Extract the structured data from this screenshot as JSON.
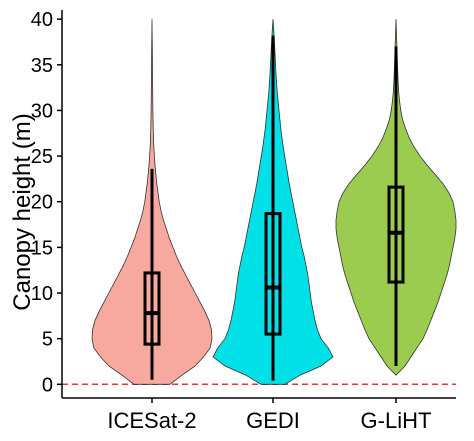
{
  "chart_data": {
    "type": "violin",
    "title": "",
    "xlabel": "",
    "ylabel": "Canopy height (m)",
    "ylim": [
      -1.5,
      41
    ],
    "yticks": [
      0,
      5,
      10,
      15,
      20,
      25,
      30,
      35,
      40
    ],
    "reference_line": {
      "y": 0,
      "style": "dashed",
      "color": "#e0353a"
    },
    "grid": false,
    "series": [
      {
        "name": "ICESat-2",
        "color": "#f7a9a0",
        "box": {
          "whisker_low": 0.5,
          "q1": 4.4,
          "median": 7.8,
          "q3": 12.2,
          "whisker_high": 23.6
        },
        "range": [
          0,
          40
        ],
        "density": [
          [
            0,
            0.3
          ],
          [
            1,
            0.5
          ],
          [
            2,
            0.72
          ],
          [
            3,
            0.86
          ],
          [
            4,
            0.97
          ],
          [
            5,
            1.0
          ],
          [
            6,
            0.99
          ],
          [
            7,
            0.95
          ],
          [
            8,
            0.88
          ],
          [
            9,
            0.8
          ],
          [
            10,
            0.72
          ],
          [
            11,
            0.64
          ],
          [
            12,
            0.56
          ],
          [
            13,
            0.48
          ],
          [
            14,
            0.41
          ],
          [
            15,
            0.35
          ],
          [
            16,
            0.29
          ],
          [
            17,
            0.24
          ],
          [
            18,
            0.19
          ],
          [
            19,
            0.15
          ],
          [
            20,
            0.12
          ],
          [
            22,
            0.08
          ],
          [
            24,
            0.05
          ],
          [
            26,
            0.03
          ],
          [
            28,
            0.02
          ],
          [
            30,
            0.015
          ],
          [
            33,
            0.01
          ],
          [
            36,
            0.007
          ],
          [
            40,
            0.0
          ]
        ]
      },
      {
        "name": "GEDI",
        "color": "#00e0e6",
        "box": {
          "whisker_low": 0.4,
          "q1": 5.5,
          "median": 10.6,
          "q3": 18.7,
          "whisker_high": 38.2
        },
        "range": [
          0,
          40
        ],
        "density": [
          [
            0,
            0.2
          ],
          [
            1,
            0.45
          ],
          [
            2,
            0.8
          ],
          [
            3,
            1.0
          ],
          [
            4,
            0.92
          ],
          [
            5,
            0.8
          ],
          [
            6,
            0.74
          ],
          [
            7,
            0.7
          ],
          [
            8,
            0.67
          ],
          [
            9,
            0.64
          ],
          [
            10,
            0.62
          ],
          [
            11,
            0.6
          ],
          [
            12,
            0.58
          ],
          [
            13,
            0.55
          ],
          [
            14,
            0.52
          ],
          [
            15,
            0.48
          ],
          [
            16,
            0.45
          ],
          [
            17,
            0.42
          ],
          [
            18,
            0.39
          ],
          [
            19,
            0.36
          ],
          [
            20,
            0.33
          ],
          [
            22,
            0.27
          ],
          [
            24,
            0.22
          ],
          [
            26,
            0.17
          ],
          [
            28,
            0.13
          ],
          [
            30,
            0.1
          ],
          [
            32,
            0.07
          ],
          [
            34,
            0.05
          ],
          [
            36,
            0.035
          ],
          [
            38,
            0.02
          ],
          [
            40,
            0.0
          ]
        ]
      },
      {
        "name": "G-LiHT",
        "color": "#9ccc4f",
        "box": {
          "whisker_low": 2.0,
          "q1": 11.2,
          "median": 16.6,
          "q3": 21.6,
          "whisker_high": 37.0
        },
        "range": [
          1,
          40
        ],
        "density": [
          [
            1,
            0.0
          ],
          [
            2,
            0.15
          ],
          [
            3,
            0.25
          ],
          [
            4,
            0.35
          ],
          [
            5,
            0.45
          ],
          [
            6,
            0.52
          ],
          [
            7,
            0.58
          ],
          [
            8,
            0.64
          ],
          [
            9,
            0.7
          ],
          [
            10,
            0.75
          ],
          [
            11,
            0.8
          ],
          [
            12,
            0.85
          ],
          [
            13,
            0.89
          ],
          [
            14,
            0.92
          ],
          [
            15,
            0.95
          ],
          [
            16,
            0.98
          ],
          [
            17,
            1.0
          ],
          [
            18,
            1.0
          ],
          [
            19,
            0.98
          ],
          [
            20,
            0.95
          ],
          [
            21,
            0.88
          ],
          [
            22,
            0.78
          ],
          [
            23,
            0.65
          ],
          [
            24,
            0.52
          ],
          [
            25,
            0.4
          ],
          [
            26,
            0.3
          ],
          [
            27,
            0.22
          ],
          [
            28,
            0.16
          ],
          [
            29,
            0.11
          ],
          [
            30,
            0.08
          ],
          [
            31,
            0.06
          ],
          [
            32,
            0.045
          ],
          [
            34,
            0.03
          ],
          [
            36,
            0.02
          ],
          [
            38,
            0.01
          ],
          [
            40,
            0.0
          ]
        ]
      }
    ]
  }
}
